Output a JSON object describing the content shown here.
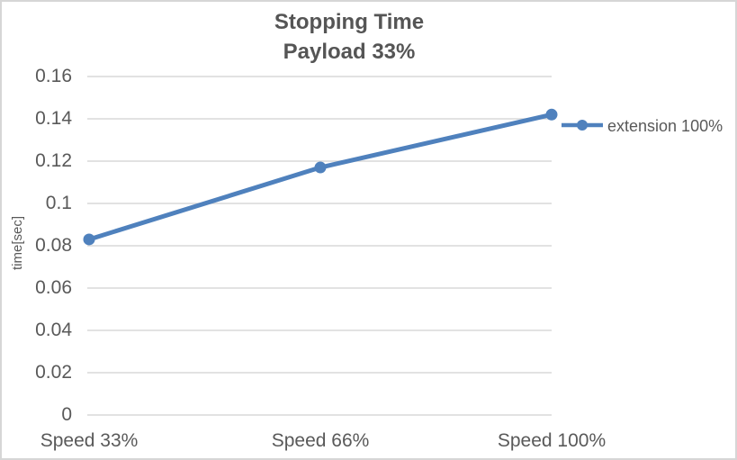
{
  "chart_data": {
    "type": "line",
    "title": "Stopping Time",
    "subtitle": "Payload 33%",
    "categories": [
      "Speed 33%",
      "Speed 66%",
      "Speed 100%"
    ],
    "series": [
      {
        "name": "extension 100%",
        "values": [
          0.083,
          0.117,
          0.142
        ]
      }
    ],
    "xlabel": "",
    "ylabel": "time[sec]",
    "ylim": [
      0,
      0.16
    ],
    "ytick_step": 0.02,
    "ytick_labels": [
      "0",
      "0.02",
      "0.04",
      "0.06",
      "0.08",
      "0.1",
      "0.12",
      "0.14",
      "0.16"
    ],
    "grid": "horizontal",
    "legend_position": "right",
    "colors": {
      "line": "#4F81BD",
      "marker": "#4F81BD",
      "gridline": "#d9d9d9",
      "text": "#595959",
      "title_text": "#555555",
      "background": "#ffffff",
      "border": "#d6d6d6"
    }
  }
}
